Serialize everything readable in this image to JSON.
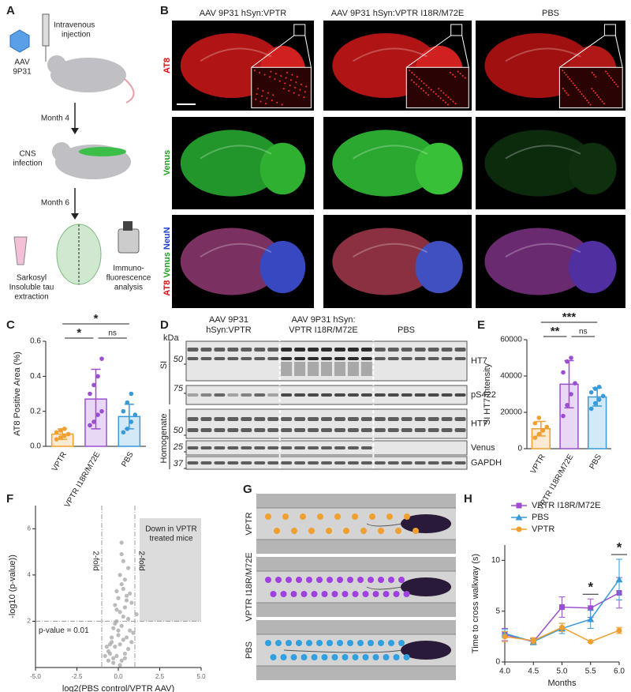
{
  "panels": {
    "a": {
      "letter": "A",
      "virus": [
        "AAV",
        "9P31"
      ],
      "injection": [
        "Intravenous",
        "injection"
      ],
      "month4": "Month 4",
      "infection": [
        "CNS",
        "infection"
      ],
      "month6": "Month 6",
      "extraction": [
        "Sarkosyl",
        "Insoluble tau",
        "extraction"
      ],
      "analysis": [
        "Immuno-",
        "fluorescence",
        "analysis"
      ]
    },
    "b": {
      "letter": "B",
      "columns": [
        "AAV 9P31 hSyn:VPTR",
        "AAV 9P31 hSyn:VPTR I18R/M72E",
        "PBS"
      ],
      "rows": [
        [
          "AT8"
        ],
        [
          "Venus"
        ],
        [
          "AT8",
          "Venus",
          "NeuN"
        ]
      ]
    },
    "d": {
      "letter": "D",
      "unit": "kDa",
      "groups": [
        [
          "AAV 9P31",
          "hSyn:VPTR"
        ],
        [
          "AAV 9P31 hSyn:",
          "VPTR I18R/M72E"
        ],
        [
          "PBS"
        ]
      ],
      "fractions": [
        "SI",
        "Homogenate"
      ],
      "markers": [
        50,
        75,
        50,
        25,
        37
      ],
      "bands": [
        "HT7",
        "pS422",
        "HT7",
        "Venus",
        "GAPDH"
      ]
    },
    "g": {
      "letter": "G",
      "lanes": [
        "VPTR",
        "VPTR I18R/M72E",
        "PBS"
      ]
    }
  },
  "chart_data": [
    {
      "type": "bar",
      "panel": "C",
      "ylabel": "AT8 Positive Area (%)",
      "categories": [
        "VPTR",
        "VPTR I18R/M72E",
        "PBS"
      ],
      "colors": [
        "#f0a030",
        "#9b4fd0",
        "#3a9ad9"
      ],
      "values": [
        0.07,
        0.27,
        0.17
      ],
      "errors": [
        0.03,
        0.17,
        0.07
      ],
      "points": [
        [
          0.04,
          0.05,
          0.06,
          0.07,
          0.08,
          0.09,
          0.1
        ],
        [
          0.12,
          0.14,
          0.18,
          0.2,
          0.3,
          0.35,
          0.4,
          0.5
        ],
        [
          0.08,
          0.1,
          0.14,
          0.18,
          0.2,
          0.25,
          0.3
        ]
      ],
      "ylim": [
        0,
        0.6
      ],
      "yticks": [
        {
          "value": 0,
          "label": "0.0"
        },
        0.2,
        0.4,
        0.6
      ],
      "annotations": [
        {
          "label": "*",
          "from": 0,
          "to": 2
        },
        {
          "label": "*",
          "from": 0,
          "to": 1
        },
        {
          "label": "ns",
          "from": 1,
          "to": 2
        }
      ]
    },
    {
      "type": "bar",
      "panel": "E",
      "ylabel": "SI HT7 Intensity",
      "categories": [
        "VPTR",
        "VPTR I18R/M72E",
        "PBS"
      ],
      "colors": [
        "#f0a030",
        "#9b4fd0",
        "#3a9ad9"
      ],
      "values": [
        11000,
        35500,
        28500
      ],
      "errors": [
        4000,
        13000,
        5000
      ],
      "points": [
        [
          6000,
          8000,
          10000,
          12000,
          14000,
          17000
        ],
        [
          18000,
          24000,
          30000,
          36000,
          42000,
          48000,
          50000
        ],
        [
          22000,
          25000,
          27000,
          29000,
          31000,
          33000,
          34000
        ]
      ],
      "ylim": [
        0,
        60000
      ],
      "yticks": [
        0,
        20000,
        40000,
        60000
      ],
      "annotations": [
        {
          "label": "***",
          "from": 0,
          "to": 2
        },
        {
          "label": "**",
          "from": 0,
          "to": 1
        },
        {
          "label": "ns",
          "from": 1,
          "to": 2
        }
      ]
    },
    {
      "type": "scatter",
      "panel": "F",
      "xlabel": "log2(PBS control/VPTR AAV)",
      "ylabel": "-log10 (p-value))",
      "color": "#aaaaaa",
      "x": [
        -0.3,
        0.2,
        -0.1,
        0.4,
        -0.5,
        0.6,
        0.1,
        -0.2,
        0.3,
        -0.4,
        0.0,
        0.5,
        -0.6,
        0.7,
        -0.8,
        0.2,
        -0.1,
        0.3,
        0.9,
        -0.3,
        0.1,
        0.4,
        -0.2,
        0.6,
        -0.7,
        0.8,
        0.0,
        -0.4,
        0.5,
        0.3,
        -0.1,
        0.2,
        1.1,
        0.7,
        -0.5,
        0.4,
        0.1,
        -0.2,
        0.6,
        0.3,
        0.0,
        -0.3,
        0.2,
        0.5,
        -0.1,
        0.1,
        0.4,
        0.8,
        -0.6,
        0.2
      ],
      "y": [
        0.2,
        0.3,
        0.5,
        0.4,
        0.6,
        0.8,
        1.0,
        0.9,
        1.2,
        1.1,
        1.4,
        1.3,
        0.7,
        1.6,
        0.5,
        1.8,
        2.0,
        2.2,
        1.5,
        1.7,
        2.4,
        2.6,
        1.9,
        2.1,
        0.9,
        2.8,
        3.0,
        1.3,
        3.1,
        3.4,
        2.5,
        3.6,
        2.3,
        3.2,
        1.0,
        3.8,
        4.0,
        2.7,
        4.3,
        4.6,
        1.6,
        0.4,
        5.4,
        2.9,
        3.3,
        0.1,
        0.6,
        1.1,
        0.3,
        4.9
      ],
      "xlim": [
        -5,
        5
      ],
      "xticks": [
        {
          "value": -5,
          "label": "-5.0"
        },
        -2.5,
        {
          "value": 0,
          "label": "0.0"
        },
        2.5,
        {
          "value": 5,
          "label": "5.0"
        }
      ],
      "ylim": [
        0,
        7
      ],
      "yticks": [
        2,
        4,
        6
      ],
      "vlines": [
        -1,
        1
      ],
      "hline": 2,
      "annotations": {
        "fold": [
          "2-fold",
          "2-fold"
        ],
        "threshold": "p-value = 0.01",
        "region": [
          "Down in VPTR",
          "treated mice"
        ]
      }
    },
    {
      "type": "line",
      "panel": "H",
      "xlabel": "Months",
      "ylabel": "Time to cross walkway (s)",
      "x": [
        4.0,
        4.5,
        5.0,
        5.5,
        6.0
      ],
      "series": [
        {
          "name": "VPTR I18R/M72E",
          "color": "#9b4fd0",
          "marker": "square",
          "values": [
            2.7,
            2.0,
            5.4,
            5.3,
            6.8
          ],
          "errors": [
            0.6,
            0.3,
            1.0,
            0.9,
            1.5
          ]
        },
        {
          "name": "PBS",
          "color": "#3a9ad9",
          "marker": "triangle",
          "values": [
            2.8,
            2.0,
            3.3,
            4.2,
            8.1
          ],
          "errors": [
            0.4,
            0.3,
            0.5,
            0.9,
            2.0
          ]
        },
        {
          "name": "VPTR",
          "color": "#f0a030",
          "marker": "circle",
          "values": [
            2.5,
            2.1,
            3.4,
            2.0,
            3.1
          ],
          "errors": [
            0.5,
            0.3,
            0.4,
            0.1,
            0.3
          ]
        }
      ],
      "xlim": [
        4,
        6
      ],
      "xticks": [
        {
          "value": 4,
          "label": "4.0"
        },
        4.5,
        {
          "value": 5,
          "label": "5.0"
        },
        5.5,
        {
          "value": 6,
          "label": "6.0"
        }
      ],
      "ylim": [
        0,
        11.5
      ],
      "yticks": [
        0,
        5,
        10
      ],
      "significance": [
        {
          "x": 5.5,
          "label": "*"
        },
        {
          "x": 6.0,
          "label": "*"
        }
      ]
    }
  ]
}
